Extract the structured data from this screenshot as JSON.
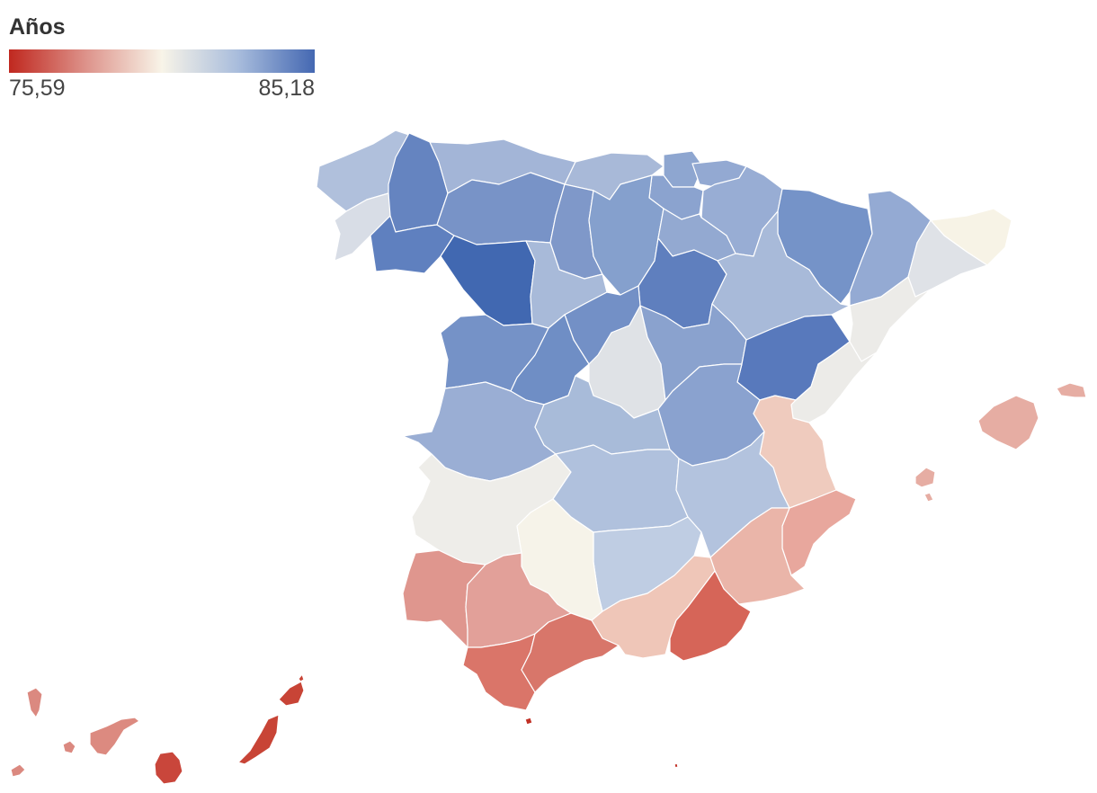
{
  "legend": {
    "title": "Años",
    "min_label": "75,59",
    "max_label": "85,18",
    "min_value": 75.59,
    "max_value": 85.18,
    "colors": [
      "#c0281f",
      "#dd928a",
      "#f8f4e8",
      "#a8bcdc",
      "#4468b2"
    ]
  },
  "map": {
    "type": "choropleth",
    "regions": [
      {
        "id": "a-coruna",
        "color": "#b0c0dc"
      },
      {
        "id": "lugo",
        "color": "#6584c0"
      },
      {
        "id": "pontevedra",
        "color": "#d8dde6"
      },
      {
        "id": "ourense",
        "color": "#5f80bf"
      },
      {
        "id": "asturias",
        "color": "#a3b5d7"
      },
      {
        "id": "cantabria",
        "color": "#a8b9d8"
      },
      {
        "id": "bizkaia",
        "color": "#8ea6d0"
      },
      {
        "id": "gipuzkoa",
        "color": "#93a9d2"
      },
      {
        "id": "araba",
        "color": "#8ba3cf"
      },
      {
        "id": "navarra",
        "color": "#98add4"
      },
      {
        "id": "leon",
        "color": "#7893c7"
      },
      {
        "id": "palencia",
        "color": "#7f98c9"
      },
      {
        "id": "burgos",
        "color": "#85a0cd"
      },
      {
        "id": "la-rioja",
        "color": "#93a9d1"
      },
      {
        "id": "huesca",
        "color": "#7593c8"
      },
      {
        "id": "lleida",
        "color": "#94aad3"
      },
      {
        "id": "girona",
        "color": "#f7f3e6"
      },
      {
        "id": "barcelona",
        "color": "#dfe2e7"
      },
      {
        "id": "zamora",
        "color": "#4168b1"
      },
      {
        "id": "valladolid",
        "color": "#a8bad9"
      },
      {
        "id": "soria",
        "color": "#5f7fbe"
      },
      {
        "id": "segovia",
        "color": "#7390c6"
      },
      {
        "id": "zaragoza",
        "color": "#a8bad9"
      },
      {
        "id": "tarragona",
        "color": "#ecebe8"
      },
      {
        "id": "teruel",
        "color": "#5879bc"
      },
      {
        "id": "salamanca",
        "color": "#7592c7"
      },
      {
        "id": "avila",
        "color": "#6f8ec5"
      },
      {
        "id": "madrid",
        "color": "#dfe2e6"
      },
      {
        "id": "guadalajara",
        "color": "#8aa2ce"
      },
      {
        "id": "caceres",
        "color": "#9aaed4"
      },
      {
        "id": "toledo",
        "color": "#a8bbd9"
      },
      {
        "id": "cuenca",
        "color": "#8aa2cf"
      },
      {
        "id": "castellon",
        "color": "#ecebe8"
      },
      {
        "id": "valencia",
        "color": "#efcbbe"
      },
      {
        "id": "badajoz",
        "color": "#eeede9"
      },
      {
        "id": "ciudad-real",
        "color": "#b0c1dd"
      },
      {
        "id": "albacete",
        "color": "#b3c3de"
      },
      {
        "id": "alicante",
        "color": "#e8a79d"
      },
      {
        "id": "huelva",
        "color": "#df968e"
      },
      {
        "id": "sevilla",
        "color": "#e2a099"
      },
      {
        "id": "cordoba",
        "color": "#f6f3e9"
      },
      {
        "id": "jaen",
        "color": "#bfcde3"
      },
      {
        "id": "murcia",
        "color": "#eab5a9"
      },
      {
        "id": "granada",
        "color": "#efc6b8"
      },
      {
        "id": "almeria",
        "color": "#d66558"
      },
      {
        "id": "cadiz",
        "color": "#da7569"
      },
      {
        "id": "malaga",
        "color": "#d8766a"
      },
      {
        "id": "mallorca",
        "color": "#e6ada3"
      },
      {
        "id": "menorca",
        "color": "#e6ada3"
      },
      {
        "id": "ibiza",
        "color": "#e6ada3"
      },
      {
        "id": "la-palma",
        "color": "#db8980"
      },
      {
        "id": "tenerife",
        "color": "#dc8a80"
      },
      {
        "id": "gran-canaria",
        "color": "#c9463b"
      },
      {
        "id": "fuerteventura",
        "color": "#c84436"
      },
      {
        "id": "lanzarote",
        "color": "#c84436"
      },
      {
        "id": "ceuta",
        "color": "#c13025"
      }
    ]
  }
}
